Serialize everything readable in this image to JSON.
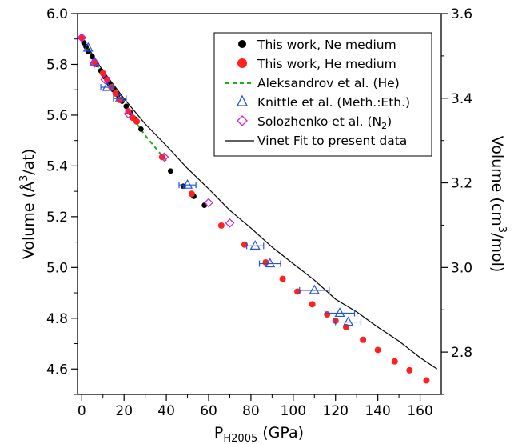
{
  "chart_data": {
    "type": "scatter",
    "xlabel_main": "P",
    "xlabel_sub": "H2005",
    "xlabel_unit": " (GPa)",
    "ylabel_left_pre": "Volume (Å",
    "ylabel_left_sup": "3",
    "ylabel_left_post": "/at)",
    "ylabel_right_pre": "Volume (cm",
    "ylabel_right_sup": "3",
    "ylabel_right_post": "/mol)",
    "xlim": [
      -2,
      170
    ],
    "ylim": [
      4.5,
      6.0
    ],
    "y2lim": [
      2.7,
      3.6
    ],
    "xticks": [
      "0",
      "20",
      "40",
      "60",
      "80",
      "100",
      "120",
      "140",
      "160"
    ],
    "yticks": [
      "4.6",
      "4.8",
      "5.0",
      "5.2",
      "5.4",
      "5.6",
      "5.8",
      "6.0"
    ],
    "y2ticks": [
      "2.8",
      "3.0",
      "3.2",
      "3.4",
      "3.6"
    ],
    "legend_position": "top-right",
    "series": [
      {
        "name": "This work, Ne medium",
        "marker": "filled-circle",
        "color": "#000000",
        "x": [
          0,
          1,
          2,
          3,
          5,
          7,
          9,
          11,
          13,
          15,
          17,
          19,
          21,
          23,
          25,
          28,
          42,
          48,
          53,
          58
        ],
        "y": [
          5.905,
          5.885,
          5.87,
          5.85,
          5.83,
          5.8,
          5.775,
          5.75,
          5.725,
          5.7,
          5.68,
          5.655,
          5.635,
          5.61,
          5.585,
          5.545,
          5.38,
          5.32,
          5.28,
          5.245
        ]
      },
      {
        "name": "This work, He medium",
        "marker": "filled-circle",
        "color": "#ff2020",
        "x": [
          0,
          6,
          10,
          12,
          14,
          16,
          18,
          22,
          24,
          26,
          38,
          52,
          66,
          77,
          87,
          95,
          102,
          109,
          116,
          120,
          125,
          133,
          140,
          148,
          155,
          163
        ],
        "y": [
          5.905,
          5.81,
          5.765,
          5.74,
          5.71,
          5.685,
          5.66,
          5.615,
          5.59,
          5.575,
          5.435,
          5.29,
          5.165,
          5.09,
          5.02,
          4.955,
          4.905,
          4.855,
          4.815,
          4.79,
          4.765,
          4.715,
          4.675,
          4.63,
          4.595,
          4.555
        ]
      },
      {
        "name": "Aleksandrov et al. (He)",
        "marker": "dashed-line",
        "color": "#22aa22",
        "x": [
          2,
          10,
          20,
          30,
          40
        ],
        "y": [
          5.875,
          5.76,
          5.635,
          5.52,
          5.42
        ]
      },
      {
        "name": "Knittle et al. (Meth.:Eth.)",
        "marker": "open-triangle",
        "color": "#2255dd",
        "x": [
          3,
          6,
          12,
          18,
          50,
          82,
          89,
          110,
          122,
          126
        ],
        "y": [
          5.865,
          5.81,
          5.71,
          5.665,
          5.325,
          5.085,
          5.015,
          4.91,
          4.82,
          4.785
        ],
        "xerr": [
          0,
          0,
          3,
          3,
          4,
          4,
          5,
          7,
          7,
          6
        ]
      },
      {
        "name": "Solozhenko et al. (N",
        "name_sub": "2",
        "name_post": ")",
        "marker": "open-diamond",
        "color": "#cc22cc",
        "x": [
          0,
          6,
          11,
          22,
          39,
          60,
          70
        ],
        "y": [
          5.905,
          5.805,
          5.74,
          5.605,
          5.435,
          5.255,
          5.175
        ]
      },
      {
        "name": "Vinet Fit  to present data",
        "marker": "line",
        "color": "#000000",
        "x": [
          0,
          10,
          20,
          30,
          40,
          50,
          60,
          70,
          80,
          90,
          100,
          110,
          120,
          130,
          140,
          150,
          160,
          168
        ],
        "y": [
          5.905,
          5.775,
          5.665,
          5.565,
          5.48,
          5.39,
          5.31,
          5.225,
          5.155,
          5.08,
          5.015,
          4.95,
          4.875,
          4.825,
          4.765,
          4.71,
          4.645,
          4.6
        ]
      }
    ]
  }
}
